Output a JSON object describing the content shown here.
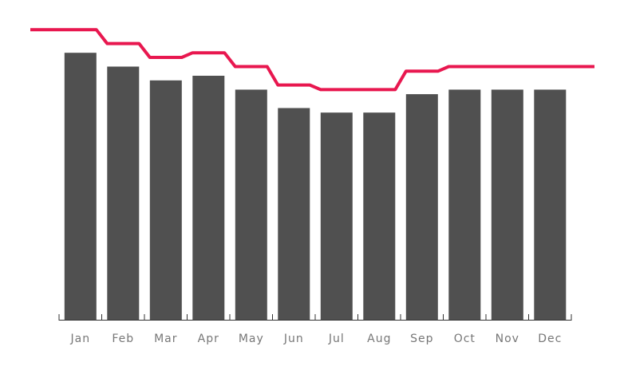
{
  "chart_data": {
    "type": "bar",
    "categories": [
      "Jan",
      "Feb",
      "Mar",
      "Apr",
      "May",
      "Jun",
      "Jul",
      "Aug",
      "Sep",
      "Oct",
      "Nov",
      "Dec"
    ],
    "series": [
      {
        "type": "bar",
        "values": [
          58,
          55,
          52,
          53,
          50,
          46,
          45,
          45,
          49,
          50,
          50,
          50
        ],
        "color": "#505050"
      },
      {
        "type": "step-line",
        "values": [
          63,
          60,
          57,
          58,
          55,
          51,
          50,
          50,
          54,
          55,
          55,
          55
        ],
        "color": "#e8174f"
      }
    ],
    "ylim": [
      0,
      66
    ],
    "title": "",
    "xlabel": "",
    "ylabel": "",
    "grid": false,
    "legend": "none"
  }
}
